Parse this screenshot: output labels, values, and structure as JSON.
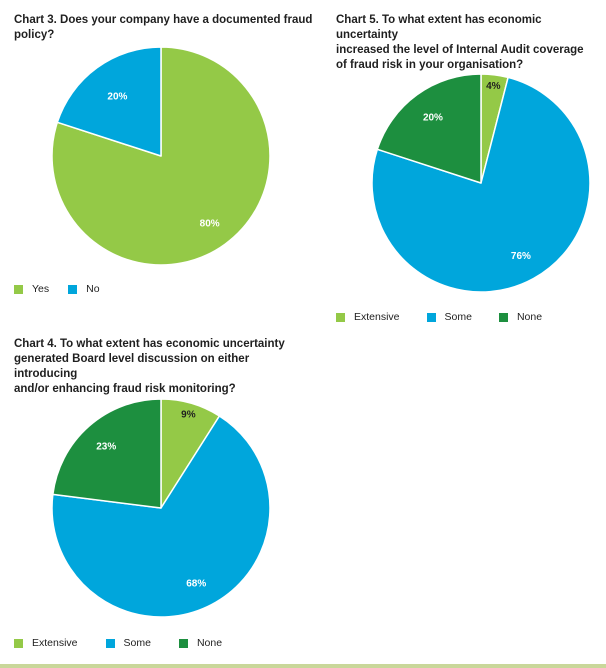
{
  "colors": {
    "light_green": "#94c947",
    "blue": "#00a6dc",
    "dark_green": "#1d8f3f",
    "stroke": "#ffffff"
  },
  "chart_data": [
    {
      "id": "chart3",
      "type": "pie",
      "title": "Chart 3. Does your company have a documented fraud policy?",
      "slices": [
        {
          "label": "Yes",
          "value": 80,
          "display": "80%",
          "color": "#94c947"
        },
        {
          "label": "No",
          "value": 20,
          "display": "20%",
          "color": "#00a6dc"
        }
      ],
      "legend_placement": "bottom-left"
    },
    {
      "id": "chart5",
      "type": "pie",
      "title": "Chart 5. To what extent has economic uncertainty\nincreased the level of Internal Audit coverage\nof fraud risk in your organisation?",
      "slices": [
        {
          "label": "Extensive",
          "value": 4,
          "display": "4%",
          "color": "#94c947"
        },
        {
          "label": "Some",
          "value": 76,
          "display": "76%",
          "color": "#00a6dc"
        },
        {
          "label": "None",
          "value": 20,
          "display": "20%",
          "color": "#1d8f3f"
        }
      ],
      "legend_placement": "bottom-left"
    },
    {
      "id": "chart4",
      "type": "pie",
      "title": "Chart 4. To what extent has economic uncertainty\ngenerated Board level discussion on either introducing\nand/or enhancing fraud risk monitoring?",
      "slices": [
        {
          "label": "Extensive",
          "value": 9,
          "display": "9%",
          "color": "#94c947"
        },
        {
          "label": "Some",
          "value": 68,
          "display": "68%",
          "color": "#00a6dc"
        },
        {
          "label": "None",
          "value": 23,
          "display": "23%",
          "color": "#1d8f3f"
        }
      ],
      "legend_placement": "bottom-left"
    }
  ]
}
